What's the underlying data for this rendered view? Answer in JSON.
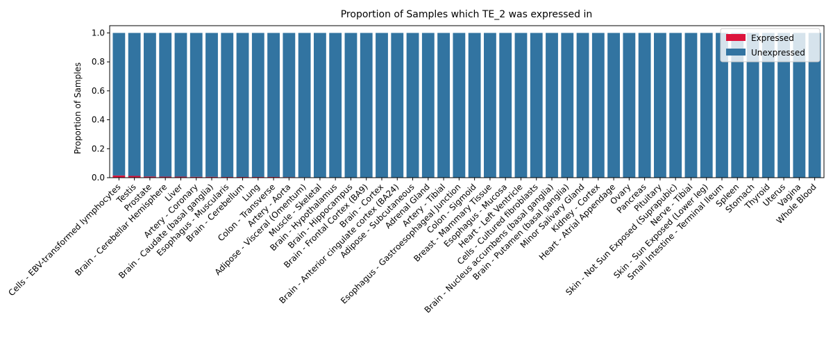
{
  "chart_data": {
    "type": "bar",
    "stacked": true,
    "title": "Proportion of Samples which TE_2 was expressed in",
    "xlabel": "",
    "ylabel": "Proportion of Samples",
    "ylim": [
      0,
      1.05
    ],
    "yticks": [
      "0.0",
      "0.2",
      "0.4",
      "0.6",
      "0.8",
      "1.0"
    ],
    "ytick_values": [
      0,
      0.2,
      0.4,
      0.6,
      0.8,
      1.0
    ],
    "grid": false,
    "legend_position": "top-right",
    "categories": [
      "Cells - EBV-transformed lymphocytes",
      "Testis",
      "Prostate",
      "Brain - Cerebellar Hemisphere",
      "Liver",
      "Artery - Coronary",
      "Brain - Caudate (basal ganglia)",
      "Esophagus - Muscularis",
      "Brain - Cerebellum",
      "Lung",
      "Colon - Transverse",
      "Artery - Aorta",
      "Adipose - Visceral (Omentum)",
      "Muscle - Skeletal",
      "Brain - Hypothalamus",
      "Brain - Hippocampus",
      "Brain - Frontal Cortex (BA9)",
      "Brain - Cortex",
      "Brain - Anterior cingulate cortex (BA24)",
      "Adipose - Subcutaneous",
      "Adrenal Gland",
      "Artery - Tibial",
      "Esophagus - Gastroesophageal Junction",
      "Colon - Sigmoid",
      "Breast - Mammary Tissue",
      "Esophagus - Mucosa",
      "Heart - Left Ventricle",
      "Cells - Cultured fibroblasts",
      "Brain - Nucleus accumbens (basal ganglia)",
      "Brain - Putamen (basal ganglia)",
      "Minor Salivary Gland",
      "Kidney - Cortex",
      "Heart - Atrial Appendage",
      "Ovary",
      "Pancreas",
      "Pituitary",
      "Skin - Not Sun Exposed (Suprapubic)",
      "Nerve - Tibial",
      "Skin - Sun Exposed (Lower leg)",
      "Small Intestine - Terminal Ileum",
      "Spleen",
      "Stomach",
      "Thyroid",
      "Uterus",
      "Vagina",
      "Whole Blood"
    ],
    "series": [
      {
        "name": "Expressed",
        "color": "#dc143c",
        "values": [
          0.015,
          0.012,
          0.008,
          0.007,
          0.007,
          0.006,
          0.006,
          0.005,
          0.005,
          0.005,
          0.005,
          0.004,
          0.003,
          0,
          0,
          0,
          0,
          0,
          0,
          0,
          0,
          0,
          0,
          0,
          0,
          0,
          0,
          0,
          0,
          0,
          0,
          0,
          0,
          0,
          0,
          0,
          0,
          0,
          0,
          0,
          0,
          0,
          0,
          0,
          0,
          0
        ]
      },
      {
        "name": "Unexpressed",
        "color": "#3274a1",
        "values": [
          0.985,
          0.988,
          0.992,
          0.993,
          0.993,
          0.994,
          0.994,
          0.995,
          0.995,
          0.995,
          0.995,
          0.996,
          0.997,
          1,
          1,
          1,
          1,
          1,
          1,
          1,
          1,
          1,
          1,
          1,
          1,
          1,
          1,
          1,
          1,
          1,
          1,
          1,
          1,
          1,
          1,
          1,
          1,
          1,
          1,
          1,
          1,
          1,
          1,
          1,
          1,
          1
        ]
      }
    ]
  }
}
